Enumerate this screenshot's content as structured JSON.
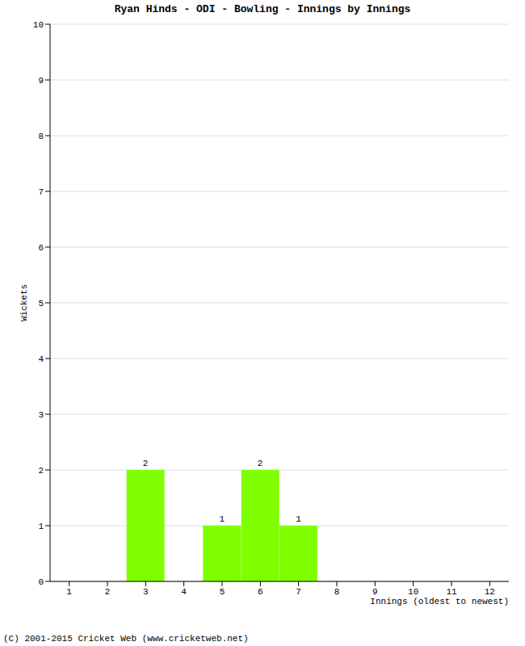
{
  "chart_data": {
    "type": "bar",
    "title": "Ryan Hinds - ODI - Bowling - Innings by Innings",
    "x_label": "Innings (oldest to newest)",
    "y_label": "Wickets",
    "footer": "(C) 2001-2015 Cricket Web (www.cricketweb.net)",
    "categories": [
      "1",
      "2",
      "3",
      "4",
      "5",
      "6",
      "7",
      "8",
      "9",
      "10",
      "11",
      "12"
    ],
    "values": [
      0,
      0,
      2,
      0,
      1,
      2,
      1,
      0,
      0,
      0,
      0,
      0
    ],
    "color": "#7fff00",
    "ylim": [
      0,
      10
    ],
    "yticks": [
      0,
      1,
      2,
      3,
      4,
      5,
      6,
      7,
      8,
      9,
      10
    ],
    "grid": true,
    "data_labels": true
  }
}
